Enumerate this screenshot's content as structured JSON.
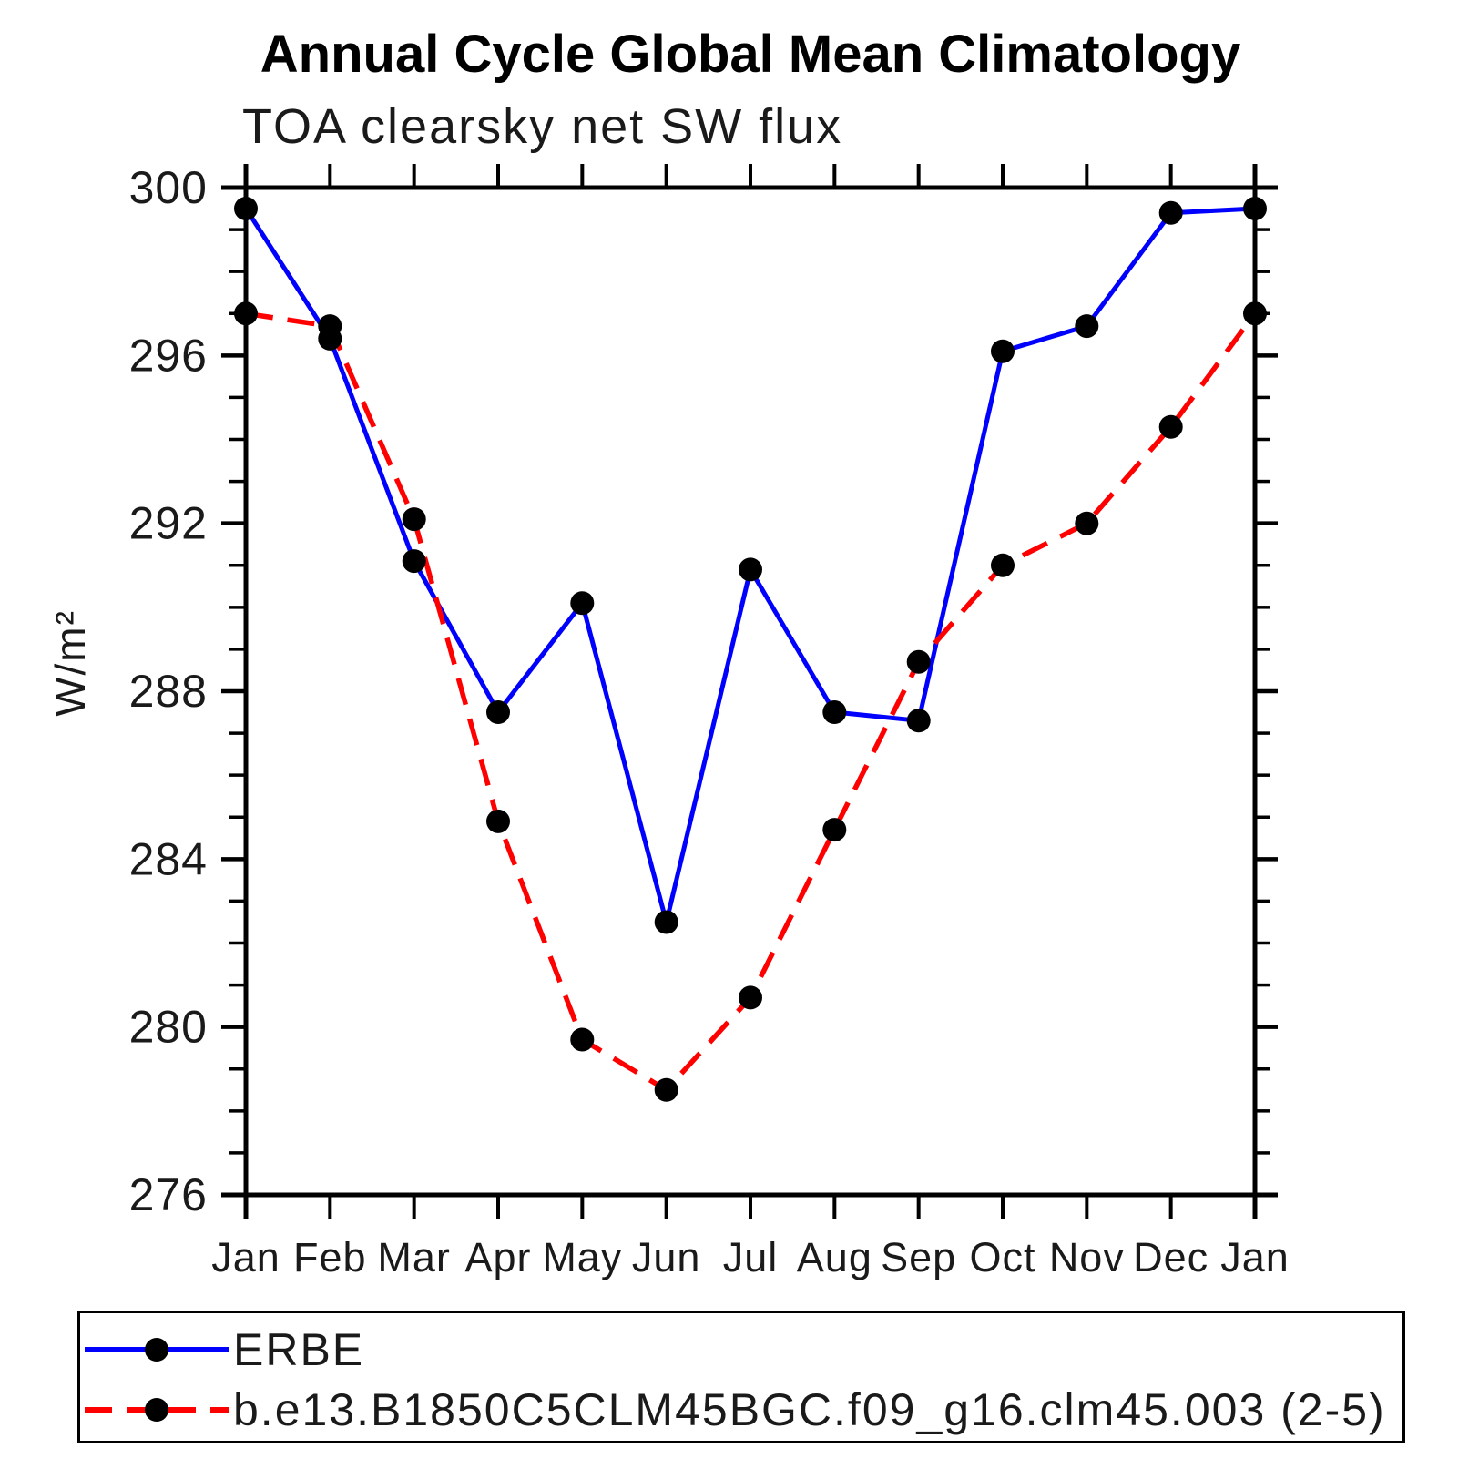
{
  "chart_data": {
    "type": "line",
    "title": "Annual Cycle Global Mean Climatology",
    "subtitle": "TOA clearsky net SW flux",
    "ylabel": "W/m²",
    "x_categories": [
      "Jan",
      "Feb",
      "Mar",
      "Apr",
      "May",
      "Jun",
      "Jul",
      "Aug",
      "Sep",
      "Oct",
      "Nov",
      "Dec",
      "Jan"
    ],
    "ylim": [
      276,
      300
    ],
    "y_major_ticks": [
      300,
      296,
      292,
      288,
      284,
      280,
      276
    ],
    "y_minor_step": 1,
    "grid": false,
    "legend_position": "bottom",
    "axis_color": "#000000",
    "marker_color": "#000000",
    "series": [
      {
        "name": "ERBE",
        "color": "#0000ff",
        "style": "solid",
        "marker": "circle",
        "values": [
          299.5,
          296.4,
          291.1,
          287.5,
          290.1,
          282.5,
          290.9,
          287.5,
          287.3,
          296.1,
          296.7,
          299.4,
          299.5
        ]
      },
      {
        "name": "b.e13.B1850C5CLM45BGC.f09_g16.clm45.003 (2-5)",
        "color": "#ff0000",
        "style": "dashed",
        "marker": "circle",
        "values": [
          297.0,
          296.7,
          292.1,
          284.9,
          279.7,
          278.5,
          280.7,
          284.7,
          288.7,
          291.0,
          292.0,
          294.3,
          297.0
        ]
      }
    ]
  }
}
